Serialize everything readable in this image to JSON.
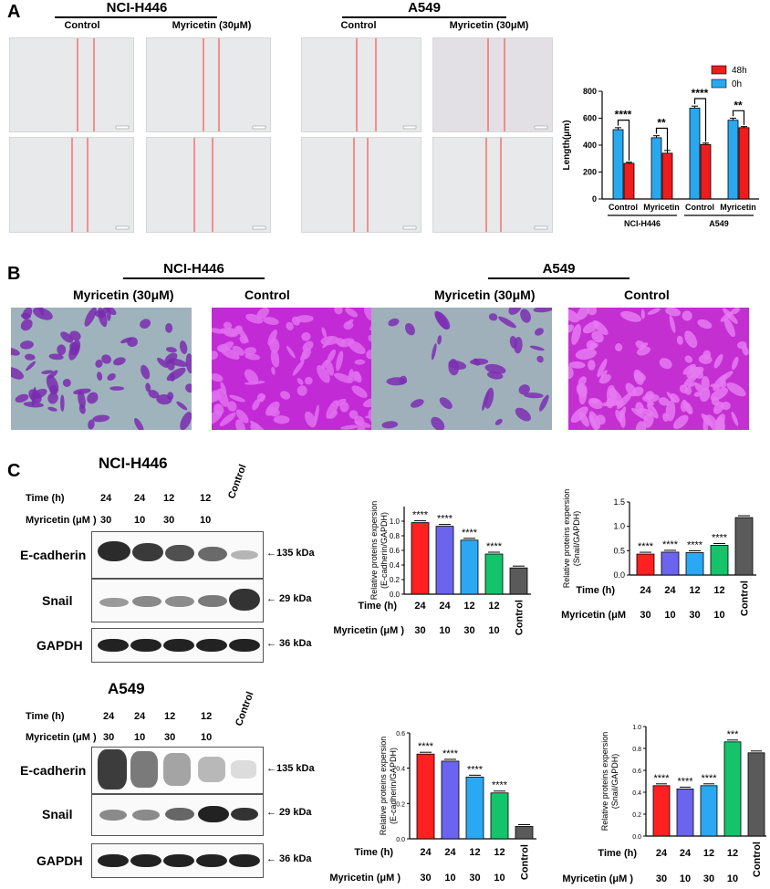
{
  "panel_a": {
    "letter": "A",
    "groups": [
      {
        "title": "NCI-H446",
        "conditions": [
          "Control",
          "Myricetin (30μM)"
        ]
      },
      {
        "title": "A549",
        "conditions": [
          "Control",
          "Myricetin (30μM)"
        ]
      }
    ]
  },
  "panel_b": {
    "letter": "B",
    "groups": [
      {
        "title": "NCI-H446",
        "conditions": [
          "Myricetin (30μM)",
          "Control"
        ]
      },
      {
        "title": "A549",
        "conditions": [
          "Myricetin (30μM)",
          "Control"
        ]
      }
    ]
  },
  "panel_c": {
    "letter": "C",
    "blots": [
      {
        "title": "NCI-H446",
        "time_label": "Time (h)",
        "myr_label": "Myricetin (μM )",
        "times": [
          "24",
          "24",
          "12",
          "12"
        ],
        "doses": [
          "30",
          "10",
          "30",
          "10"
        ],
        "control_label": "Control",
        "proteins": [
          {
            "name": "E-cadherin",
            "size": "←135 kDa"
          },
          {
            "name": "Snail",
            "size": "← 29 kDa"
          },
          {
            "name": "GAPDH",
            "size": "← 36 kDa"
          }
        ]
      },
      {
        "title": "A549",
        "time_label": "Time (h)",
        "myr_label": "Myricetin (μM )",
        "times": [
          "24",
          "24",
          "12",
          "12"
        ],
        "doses": [
          "30",
          "10",
          "30",
          "10"
        ],
        "control_label": "Control",
        "proteins": [
          {
            "name": "E-cadherin",
            "size": "←135 kDa"
          },
          {
            "name": "Snail",
            "size": "← 29 kDa"
          },
          {
            "name": "GAPDH",
            "size": "← 36 kDa"
          }
        ]
      }
    ]
  },
  "colors": {
    "red": "#ff2020",
    "blue_violet": "#6b64ee",
    "sky": "#2aa8f2",
    "green": "#14c46a",
    "gray": "#5a5a5a",
    "bar_48h": "#ee1c1c",
    "bar_0h": "#29a8f0",
    "crystal_violet": "#b52bcf"
  },
  "chart_data": [
    {
      "type": "bar",
      "ylabel": "Length(μm)",
      "ylim": [
        0,
        800
      ],
      "yticks": [
        0,
        200,
        400,
        600,
        800
      ],
      "categories": [
        "Control",
        "Myricetin",
        "Control",
        "Myricetin"
      ],
      "groups": [
        "NCI-H446",
        "A549"
      ],
      "series": [
        {
          "name": "0h",
          "values": [
            515,
            455,
            675,
            585
          ]
        },
        {
          "name": "48h",
          "values": [
            265,
            340,
            405,
            530
          ]
        }
      ],
      "errors": [
        [
          15,
          15,
          15,
          15
        ],
        [
          8,
          20,
          10,
          8
        ]
      ],
      "annotations": [
        "****",
        "**",
        "****",
        "**"
      ],
      "legend": "top-right"
    },
    {
      "type": "bar",
      "ylabel": "Relative proteins expersion (E-cadherin/GAPDH)",
      "ylim": [
        0,
        1.2
      ],
      "yticks": [
        0.0,
        0.2,
        0.4,
        0.6,
        0.8,
        1.0
      ],
      "row_labels": [
        "Time (h)",
        "Myricetin (μM )"
      ],
      "times": [
        "24",
        "24",
        "12",
        "12"
      ],
      "doses": [
        "30",
        "10",
        "30",
        "10"
      ],
      "categories": [
        "24/30",
        "24/10",
        "12/30",
        "12/10",
        "Control"
      ],
      "control_label": "Control",
      "values": [
        0.98,
        0.93,
        0.74,
        0.55,
        0.36
      ],
      "annotations": [
        "****",
        "****",
        "****",
        "****",
        ""
      ]
    },
    {
      "type": "bar",
      "ylabel": "Relative proteins expersion (Snail/GAPDH)",
      "ylim": [
        0,
        1.5
      ],
      "yticks": [
        0.0,
        0.5,
        1.0,
        1.5
      ],
      "row_labels": [
        "Time (h)",
        "Myricetin (μM"
      ],
      "times": [
        "24",
        "24",
        "12",
        "12"
      ],
      "doses": [
        "30",
        "10",
        "30",
        "10"
      ],
      "categories": [
        "24/30",
        "24/10",
        "12/30",
        "12/10",
        "Control"
      ],
      "control_label": "Control",
      "values": [
        0.43,
        0.47,
        0.46,
        0.61,
        1.18
      ],
      "annotations": [
        "****",
        "****",
        "****",
        "****",
        ""
      ]
    },
    {
      "type": "bar",
      "ylabel": "Relative proteins expersion (E-cadherin/GAPDH)",
      "ylim": [
        0,
        0.6
      ],
      "yticks": [
        0.0,
        0.2,
        0.4,
        0.6
      ],
      "row_labels": [
        "Time (h)",
        "Myricetin (μM )"
      ],
      "times": [
        "24",
        "24",
        "12",
        "12"
      ],
      "doses": [
        "30",
        "10",
        "30",
        "10"
      ],
      "categories": [
        "24/30",
        "24/10",
        "12/30",
        "12/10",
        "Control"
      ],
      "control_label": "Control",
      "values": [
        0.48,
        0.44,
        0.35,
        0.26,
        0.07
      ],
      "annotations": [
        "****",
        "****",
        "****",
        "****",
        ""
      ]
    },
    {
      "type": "bar",
      "ylabel": "Relative proteins expersion (Snail/GAPDH)",
      "ylim": [
        0,
        1.0
      ],
      "yticks": [
        0.0,
        0.2,
        0.4,
        0.6,
        0.8,
        1.0
      ],
      "row_labels": [
        "Time (h)",
        "Myricetin (μM )"
      ],
      "times": [
        "24",
        "24",
        "12",
        "12"
      ],
      "doses": [
        "30",
        "10",
        "30",
        "10"
      ],
      "categories": [
        "24/30",
        "24/10",
        "12/30",
        "12/10",
        "Control"
      ],
      "control_label": "Control",
      "values": [
        0.46,
        0.43,
        0.46,
        0.86,
        0.76
      ],
      "annotations": [
        "****",
        "****",
        "****",
        "***",
        ""
      ]
    }
  ]
}
